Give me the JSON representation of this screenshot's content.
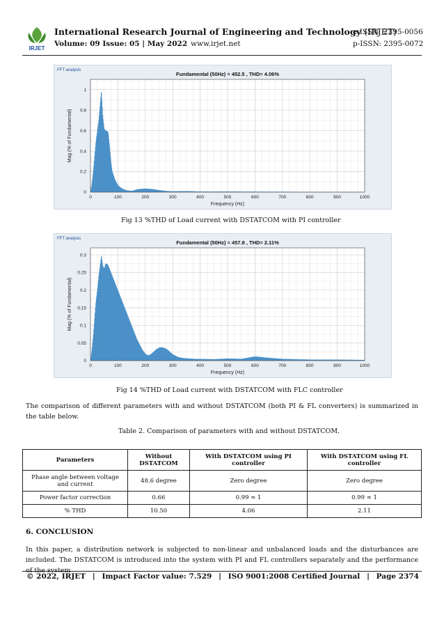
{
  "header": {
    "journal_title": "International Research Journal of Engineering and Technology",
    "journal_tag": "(IRJET)",
    "e_issn": "e-ISSN: 2395-0056",
    "volume_issue": "Volume: 09 Issue: 05 | May 2022",
    "url": "www.irjet.net",
    "p_issn": "p-ISSN: 2395-0072",
    "logo_text": "IRJET"
  },
  "figures": [
    {
      "panel_label": "FFT analysis",
      "caption": "Fig 13 %THD of Load current with DSTATCOM with PI controller"
    },
    {
      "panel_label": "FFT analysis",
      "caption": "Fig 14 %THD of Load current with DSTATCOM with FLC controller"
    }
  ],
  "chart_data": [
    {
      "type": "bar",
      "title": "Fundamental (50Hz) = 452.5 , THD= 4.06%",
      "xlabel": "Frequency (Hz)",
      "ylabel": "Mag (% of Fundamental)",
      "xlim": [
        0,
        1000
      ],
      "ylim": [
        0,
        1.1
      ],
      "xticks": [
        0,
        100,
        200,
        300,
        400,
        500,
        600,
        700,
        800,
        900,
        1000
      ],
      "yticks": [
        0,
        0.2,
        0.4,
        0.6,
        0.8,
        1
      ],
      "ytick_labels": [
        "0",
        "0.2",
        "0.4",
        "0.6",
        "0.8",
        "1"
      ],
      "grid": true,
      "color": "#4a90c8",
      "x": [
        0,
        5,
        10,
        15,
        20,
        25,
        30,
        35,
        40,
        45,
        50,
        55,
        60,
        65,
        70,
        75,
        80,
        90,
        100,
        110,
        120,
        130,
        140,
        150,
        175,
        200,
        225,
        250,
        275,
        300,
        350,
        400,
        450,
        500,
        550,
        600,
        650,
        700,
        800,
        900,
        1000
      ],
      "y": [
        0,
        0.08,
        0.2,
        0.35,
        0.5,
        0.6,
        0.7,
        0.85,
        1.0,
        0.75,
        0.62,
        0.6,
        0.6,
        0.58,
        0.45,
        0.3,
        0.2,
        0.12,
        0.07,
        0.045,
        0.03,
        0.02,
        0.015,
        0.012,
        0.03,
        0.035,
        0.03,
        0.02,
        0.012,
        0.008,
        0.01,
        0.006,
        0.005,
        0.006,
        0.005,
        0.005,
        0.004,
        0.004,
        0.003,
        0.003,
        0.002
      ]
    },
    {
      "type": "bar",
      "title": "Fundamental (50Hz) = 457.8 , THD= 2.11%",
      "xlabel": "Frequency (Hz)",
      "ylabel": "Mag (% of Fundamental)",
      "xlim": [
        0,
        1000
      ],
      "ylim": [
        0,
        0.32
      ],
      "xticks": [
        0,
        100,
        200,
        300,
        400,
        500,
        600,
        700,
        800,
        900,
        1000
      ],
      "yticks": [
        0,
        0.05,
        0.1,
        0.15,
        0.2,
        0.25,
        0.3
      ],
      "ytick_labels": [
        "0",
        "0.05",
        "0.1",
        "0.15",
        "0.2",
        "0.25",
        "0.3"
      ],
      "grid": true,
      "color": "#4a90c8",
      "x": [
        0,
        5,
        10,
        15,
        20,
        25,
        30,
        35,
        40,
        45,
        50,
        55,
        60,
        65,
        70,
        80,
        90,
        100,
        110,
        120,
        130,
        140,
        150,
        160,
        170,
        180,
        190,
        200,
        210,
        220,
        230,
        240,
        250,
        260,
        270,
        280,
        290,
        300,
        320,
        340,
        360,
        380,
        400,
        450,
        500,
        550,
        600,
        650,
        700,
        750,
        800,
        900,
        1000
      ],
      "y": [
        0,
        0.03,
        0.07,
        0.12,
        0.17,
        0.2,
        0.24,
        0.27,
        0.3,
        0.27,
        0.26,
        0.275,
        0.275,
        0.27,
        0.26,
        0.24,
        0.22,
        0.2,
        0.18,
        0.16,
        0.14,
        0.12,
        0.1,
        0.08,
        0.06,
        0.045,
        0.03,
        0.02,
        0.015,
        0.018,
        0.025,
        0.032,
        0.037,
        0.038,
        0.036,
        0.032,
        0.025,
        0.018,
        0.01,
        0.007,
        0.006,
        0.005,
        0.005,
        0.004,
        0.006,
        0.005,
        0.012,
        0.008,
        0.005,
        0.004,
        0.003,
        0.003,
        0.002
      ]
    }
  ],
  "body": {
    "paragraph1": "The comparison of different parameters with and without DSTATCOM (both PI & FL converters) is summarized in the table below.",
    "table_caption": "Table 2. Comparison of parameters with and without DSTATCOM.",
    "table": {
      "headers": [
        "Parameters",
        "Without DSTATCOM",
        "With DSTATCOM using PI controller",
        "With DSTATCOM using FL controller"
      ],
      "rows": [
        [
          "Phase angle between voltage and current",
          "48.6 degree",
          "Zero degree",
          "Zero degree"
        ],
        [
          "Power factor correction",
          "0.66",
          "0.99 ≈ 1",
          "0.99 ≈ 1"
        ],
        [
          "% THD",
          "10.50",
          "4.06",
          "2.11"
        ]
      ]
    },
    "section_heading": "6. CONCLUSION",
    "paragraph2": "In this paper, a distribution network is subjected to non-linear and unbalanced loads and the disturbances are included. The DSTATCOM is introduced into the system with PI and FL controllers separately and the performance of the system"
  },
  "footer": {
    "copyright": "© 2022, IRJET",
    "sep1": "|",
    "impact": "Impact Factor value: 7.529",
    "sep2": "|",
    "iso": "ISO 9001:2008 Certified Journal",
    "sep3": "|",
    "page": "Page 2374"
  }
}
